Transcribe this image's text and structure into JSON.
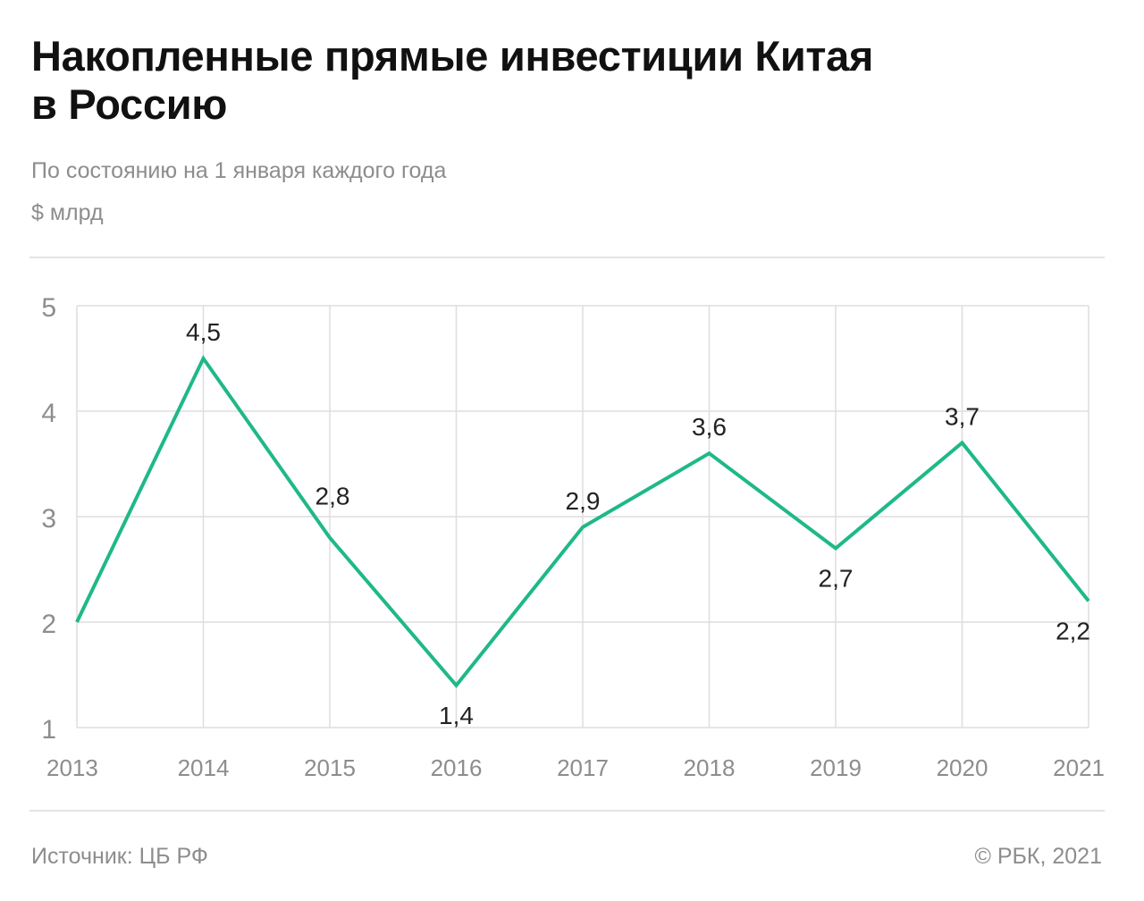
{
  "title_line1": "Накопленные прямые инвестиции Китая",
  "title_line2": "в Россию",
  "subtitle": "По состоянию на 1 января каждого года",
  "unit": "$ млрд",
  "source": "Источник:  ЦБ РФ",
  "copyright": "©  РБК, 2021",
  "colors": {
    "line": "#1fb889",
    "grid": "#dedede",
    "axis_text": "#8d8d8d",
    "label_text": "#222222"
  },
  "chart_data": {
    "type": "line",
    "title": "Накопленные прямые инвестиции Китая в Россию",
    "subtitle": "По состоянию на 1 января каждого года",
    "ylabel": "$ млрд",
    "xlabel": "",
    "categories": [
      "2013",
      "2014",
      "2015",
      "2016",
      "2017",
      "2018",
      "2019",
      "2020",
      "2021"
    ],
    "values": [
      2.0,
      4.5,
      2.8,
      1.4,
      2.9,
      3.6,
      2.7,
      3.7,
      2.2
    ],
    "labels": [
      "",
      "4,5",
      "2,8",
      "1,4",
      "2,9",
      "3,6",
      "2,7",
      "3,7",
      "2,2"
    ],
    "ylim": [
      1,
      5
    ],
    "yticks": [
      "1",
      "2",
      "3",
      "4",
      "5"
    ],
    "grid": true
  }
}
